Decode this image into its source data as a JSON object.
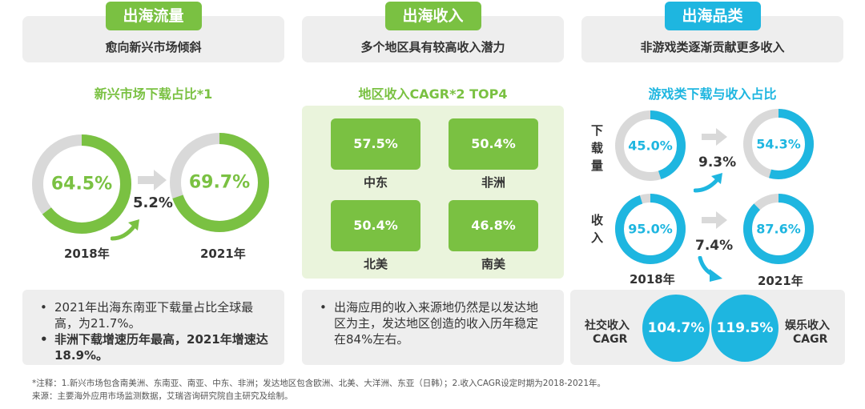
{
  "colors": {
    "green": "#7ac142",
    "light_green": "#eaf4dc",
    "blue": "#1eb6e0",
    "grey_track": "#d9d9d9",
    "grey_box": "#eeeeee"
  },
  "panels": [
    {
      "pill": "出海流量",
      "subtitle": "愈向新兴市场倾斜"
    },
    {
      "pill": "出海收入",
      "subtitle": "多个地区具有较高收入潜力"
    },
    {
      "pill": "出海品类",
      "subtitle": "非游戏类逐渐贡献更多收入"
    }
  ],
  "left": {
    "title": "新兴市场下载占比*1",
    "growth": "5.2%",
    "bullets": [
      "2021年出海东南亚下载量占比全球最高，为21.7%。",
      "非洲下载增速历年最高，2021年增速达18.9%。"
    ]
  },
  "middle": {
    "title": "地区收入CAGR*2 TOP4",
    "bullets": [
      "出海应用的收入来源地仍然是以发达地区为主，发达地区创造的收入历年稳定在84%左右。"
    ]
  },
  "right": {
    "title": "游戏类下载与收入占比",
    "download_label": "下载量",
    "income_label": "收入",
    "download_growth": "9.3%",
    "income_growth": "7.4%",
    "social": {
      "label": "社交收入",
      "label2": "CAGR",
      "value": "104.7%"
    },
    "ent": {
      "label": "娱乐收入",
      "label2": "CAGR",
      "value": "119.5%"
    }
  },
  "chart_data": [
    {
      "type": "pie",
      "title": "新兴市场下载占比*1",
      "categories": [
        "2018年",
        "2021年"
      ],
      "values": [
        64.5,
        69.7
      ],
      "value_labels": [
        "64.5%",
        "69.7%"
      ]
    },
    {
      "type": "table",
      "title": "地区收入CAGR*2 TOP4",
      "categories": [
        "中东",
        "非洲",
        "北美",
        "南美"
      ],
      "values": [
        57.5,
        50.4,
        50.4,
        46.8
      ],
      "value_labels": [
        "57.5%",
        "50.4%",
        "50.4%",
        "46.8%"
      ]
    },
    {
      "type": "pie",
      "title": "游戏类下载与收入占比",
      "categories": [
        "2018年",
        "2021年"
      ],
      "series": [
        {
          "name": "下载量",
          "values": [
            45.0,
            54.3
          ],
          "value_labels": [
            "45.0%",
            "54.3%"
          ]
        },
        {
          "name": "收入",
          "values": [
            95.0,
            87.6
          ],
          "value_labels": [
            "95.0%",
            "87.6%"
          ]
        }
      ]
    },
    {
      "type": "table",
      "categories": [
        "社交收入CAGR",
        "娱乐收入CAGR"
      ],
      "values": [
        104.7,
        119.5
      ],
      "value_labels": [
        "104.7%",
        "119.5%"
      ]
    }
  ],
  "footnotes": {
    "line1": "*注释：1.新兴市场包含南美洲、东南亚、南亚、中东、非洲；发达地区包含欧洲、北美、大洋洲、东亚（日韩）；2.收入CAGR设定时期为2018-2021年。",
    "line2": "来源：主要海外应用市场监测数据，艾瑞咨询研究院自主研究及绘制。"
  }
}
